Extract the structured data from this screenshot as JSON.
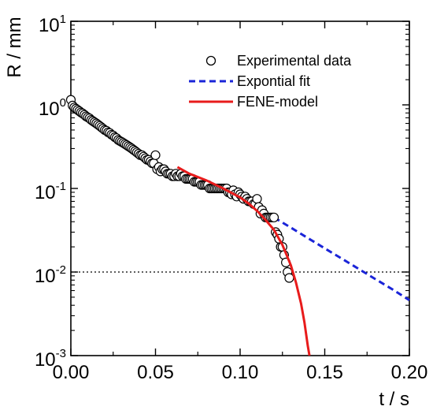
{
  "chart_data": {
    "type": "scatter",
    "xlabel": "t / s",
    "ylabel": "R / mm",
    "xlim": [
      0.0,
      0.2
    ],
    "ylim": [
      0.001,
      10
    ],
    "y_scale": "log",
    "grid": false,
    "legend_position": "top-right",
    "x_ticks": [
      "0.00",
      "0.05",
      "0.10",
      "0.15",
      "0.20"
    ],
    "y_ticks": [
      {
        "base": "10",
        "exp": "-3"
      },
      {
        "base": "10",
        "exp": "-2"
      },
      {
        "base": "10",
        "exp": "-1"
      },
      {
        "base": "10",
        "exp": "0"
      },
      {
        "base": "10",
        "exp": "1"
      }
    ],
    "reference_line": {
      "y": 0.01,
      "style": "dotted",
      "color": "#000000"
    },
    "series": [
      {
        "name": "Experimental data",
        "kind": "markers",
        "marker": "open-circle",
        "color": "#000000",
        "x": [
          0.0,
          0.001,
          0.002,
          0.003,
          0.004,
          0.005,
          0.006,
          0.007,
          0.008,
          0.009,
          0.01,
          0.011,
          0.012,
          0.013,
          0.014,
          0.015,
          0.016,
          0.017,
          0.018,
          0.019,
          0.02,
          0.021,
          0.022,
          0.023,
          0.024,
          0.025,
          0.026,
          0.027,
          0.028,
          0.029,
          0.03,
          0.031,
          0.032,
          0.033,
          0.034,
          0.035,
          0.036,
          0.037,
          0.038,
          0.039,
          0.04,
          0.041,
          0.042,
          0.043,
          0.044,
          0.045,
          0.046,
          0.047,
          0.048,
          0.049,
          0.05,
          0.051,
          0.052,
          0.053,
          0.054,
          0.055,
          0.056,
          0.057,
          0.058,
          0.059,
          0.06,
          0.061,
          0.062,
          0.063,
          0.064,
          0.065,
          0.066,
          0.067,
          0.068,
          0.069,
          0.07,
          0.071,
          0.072,
          0.073,
          0.074,
          0.075,
          0.076,
          0.077,
          0.078,
          0.079,
          0.08,
          0.081,
          0.082,
          0.083,
          0.084,
          0.085,
          0.086,
          0.087,
          0.088,
          0.089,
          0.09,
          0.091,
          0.092,
          0.093,
          0.094,
          0.095,
          0.096,
          0.097,
          0.098,
          0.099,
          0.1,
          0.101,
          0.102,
          0.103,
          0.104,
          0.105,
          0.106,
          0.107,
          0.108,
          0.109,
          0.11,
          0.111,
          0.112,
          0.113,
          0.114,
          0.115,
          0.116,
          0.117,
          0.118,
          0.119,
          0.12,
          0.121,
          0.122,
          0.123,
          0.124,
          0.125,
          0.126,
          0.127,
          0.128,
          0.129
        ],
        "y": [
          1.15,
          0.98,
          0.93,
          0.9,
          0.87,
          0.84,
          0.81,
          0.79,
          0.76,
          0.73,
          0.71,
          0.69,
          0.66,
          0.64,
          0.62,
          0.6,
          0.58,
          0.56,
          0.54,
          0.52,
          0.5,
          0.49,
          0.47,
          0.46,
          0.44,
          0.43,
          0.41,
          0.4,
          0.38,
          0.37,
          0.36,
          0.35,
          0.34,
          0.33,
          0.32,
          0.31,
          0.3,
          0.29,
          0.28,
          0.27,
          0.26,
          0.25,
          0.25,
          0.24,
          0.23,
          0.22,
          0.22,
          0.21,
          0.2,
          0.2,
          0.25,
          0.17,
          0.18,
          0.16,
          0.17,
          0.17,
          0.16,
          0.15,
          0.15,
          0.15,
          0.14,
          0.14,
          0.15,
          0.14,
          0.14,
          0.15,
          0.14,
          0.14,
          0.13,
          0.13,
          0.13,
          0.13,
          0.13,
          0.12,
          0.12,
          0.12,
          0.12,
          0.11,
          0.11,
          0.11,
          0.11,
          0.11,
          0.1,
          0.1,
          0.1,
          0.1,
          0.1,
          0.1,
          0.1,
          0.1,
          0.1,
          0.1,
          0.1,
          0.09,
          0.09,
          0.085,
          0.095,
          0.085,
          0.08,
          0.09,
          0.085,
          0.08,
          0.075,
          0.08,
          0.075,
          0.07,
          0.07,
          0.07,
          0.065,
          0.065,
          0.075,
          0.06,
          0.05,
          0.055,
          0.05,
          0.045,
          0.045,
          0.045,
          0.045,
          0.045,
          0.045,
          0.03,
          0.028,
          0.025,
          0.02,
          0.02,
          0.016,
          0.013,
          0.01,
          0.0085
        ]
      },
      {
        "name": "Expontial fit",
        "kind": "line",
        "style": "dashed",
        "color": "#1a24d8",
        "x": [
          0.12,
          0.13,
          0.14,
          0.15,
          0.16,
          0.17,
          0.18,
          0.19,
          0.2
        ],
        "y": [
          0.045,
          0.034,
          0.0255,
          0.0192,
          0.0145,
          0.0109,
          0.0082,
          0.0062,
          0.0046
        ]
      },
      {
        "name": "FENE-model",
        "kind": "line",
        "style": "solid",
        "color": "#e81b1b",
        "x": [
          0.063,
          0.07,
          0.08,
          0.09,
          0.1,
          0.105,
          0.11,
          0.115,
          0.12,
          0.125,
          0.13,
          0.133,
          0.136,
          0.138,
          0.14,
          0.141
        ],
        "y": [
          0.18,
          0.15,
          0.125,
          0.1,
          0.078,
          0.066,
          0.054,
          0.042,
          0.032,
          0.021,
          0.012,
          0.0075,
          0.0042,
          0.0025,
          0.0013,
          0.001
        ]
      }
    ]
  }
}
